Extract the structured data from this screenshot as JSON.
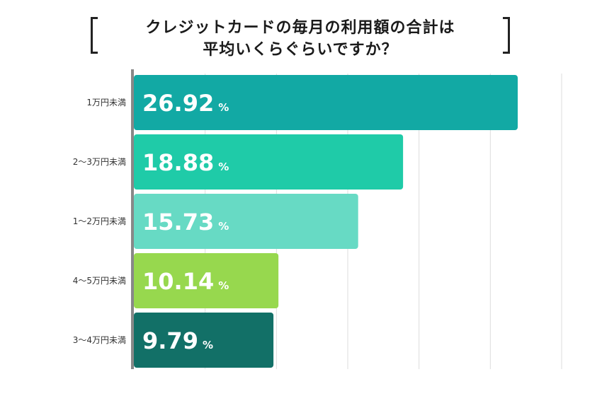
{
  "chart_data": {
    "type": "bar",
    "orientation": "horizontal",
    "title": "クレジットカードの毎月の利用額の合計は\n平均いくらぐらいですか？",
    "categories": [
      "1万円未満",
      "2〜3万円未満",
      "1〜2万円未満",
      "4〜5万円未満",
      "3〜4万円未満"
    ],
    "values": [
      26.92,
      18.88,
      15.73,
      10.14,
      9.79
    ],
    "unit": "%",
    "xlim": [
      0,
      30
    ],
    "grid": true,
    "colors": [
      "#12a9a4",
      "#1fcba8",
      "#67dac4",
      "#97d84e",
      "#127067"
    ]
  }
}
